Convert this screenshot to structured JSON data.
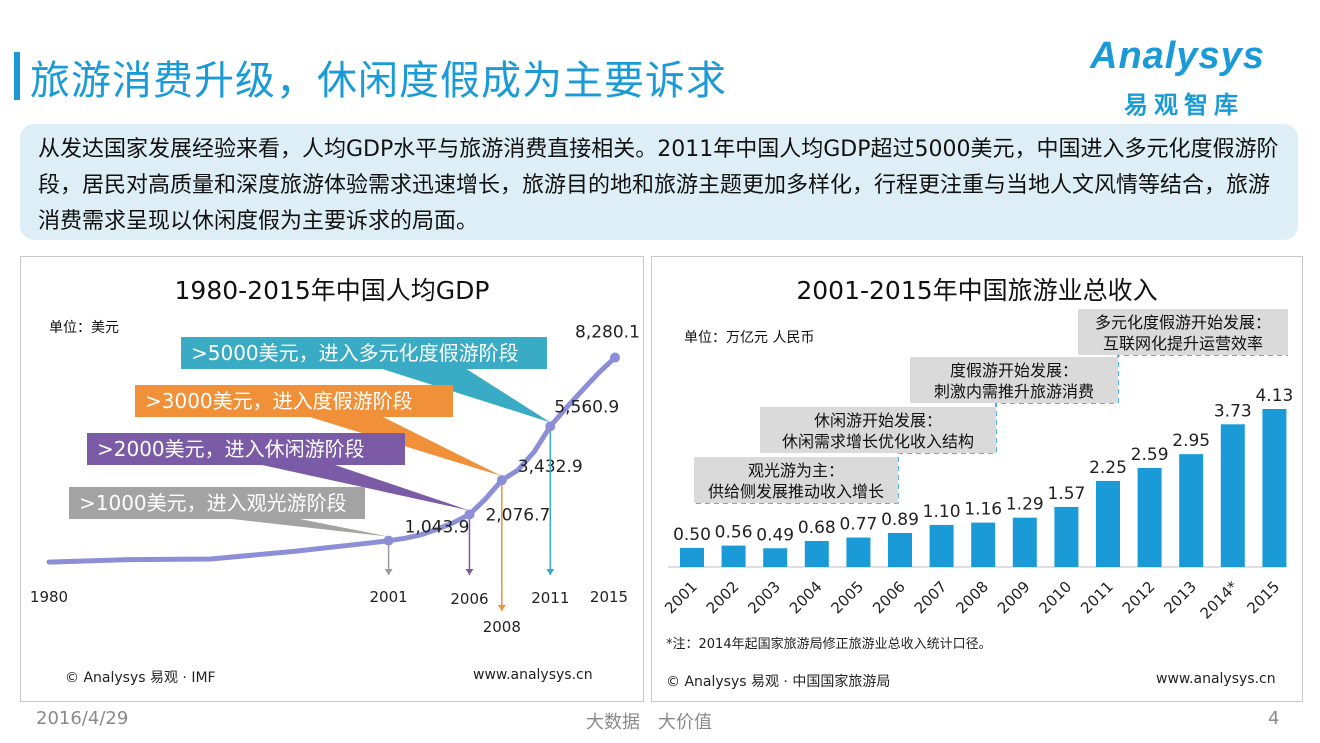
{
  "header": {
    "title": "旅游消费升级，休闲度假成为主要诉求",
    "logo_word": "Analysys",
    "logo_cn": "易观智库"
  },
  "intro": {
    "text": "从发达国家发展经验来看，人均GDP水平与旅游消费直接相关。2011年中国人均GDP超过5000美元，中国进入多元化度假游阶段，居民对高质量和深度旅游体验需求迅速增长，旅游目的地和旅游主题更加多样化，行程更注重与当地人文风情等结合，旅游消费需求呈现以休闲度假为主要诉求的局面。"
  },
  "left_panel": {
    "unit": "单位：美元",
    "source_left": "© Analysys 易观 · IMF",
    "source_right": "www.analysys.cn"
  },
  "right_panel": {
    "unit": "单位：万亿元 人民币",
    "note": "*注：2014年起国家旅游局修正旅游业总收入统计口径。",
    "source_left": "© Analysys 易观 · 中国国家旅游局",
    "source_right": "www.analysys.cn"
  },
  "chart_data": [
    {
      "type": "line",
      "title": "1980-2015年中国人均GDP",
      "ylabel": "单位：美元",
      "x": [
        1980,
        2001,
        2006,
        2008,
        2011,
        2015
      ],
      "labeled_points": [
        {
          "x": 2001,
          "label": "1,043.9",
          "value": 1043.9
        },
        {
          "x": 2006,
          "label": "2,076.7",
          "value": 2076.7
        },
        {
          "x": 2008,
          "label": "3,432.9",
          "value": 3432.9
        },
        {
          "x": 2011,
          "label": "5,560.9",
          "value": 5560.9
        },
        {
          "x": 2015,
          "label": "8,280.1",
          "value": 8280.1
        }
      ],
      "series_estimate": [
        {
          "x": 1980,
          "y": 195
        },
        {
          "x": 1985,
          "y": 294
        },
        {
          "x": 1990,
          "y": 318
        },
        {
          "x": 1995,
          "y": 610
        },
        {
          "x": 2000,
          "y": 959
        },
        {
          "x": 2001,
          "y": 1043.9
        },
        {
          "x": 2002,
          "y": 1135
        },
        {
          "x": 2003,
          "y": 1274
        },
        {
          "x": 2004,
          "y": 1490
        },
        {
          "x": 2005,
          "y": 1753
        },
        {
          "x": 2006,
          "y": 2076.7
        },
        {
          "x": 2007,
          "y": 2695
        },
        {
          "x": 2008,
          "y": 3432.9
        },
        {
          "x": 2009,
          "y": 3833
        },
        {
          "x": 2010,
          "y": 4550
        },
        {
          "x": 2011,
          "y": 5560.9
        },
        {
          "x": 2012,
          "y": 6300
        },
        {
          "x": 2013,
          "y": 7000
        },
        {
          "x": 2014,
          "y": 7680
        },
        {
          "x": 2015,
          "y": 8280.1
        }
      ],
      "xlim": [
        1980,
        2015
      ],
      "ylim": [
        0,
        8500
      ],
      "tick_labels": [
        "1980",
        "2001",
        "2006",
        "2008",
        "2011",
        "2015"
      ],
      "color": "#8c8fd6",
      "callouts": [
        {
          "text": ">5000美元，进入多元化度假游阶段",
          "target_year": 2011,
          "color": "#3aabc4"
        },
        {
          "text": ">3000美元，进入度假游阶段",
          "target_year": 2008,
          "color": "#f0913a"
        },
        {
          "text": ">2000美元，进入休闲游阶段",
          "target_year": 2006,
          "color": "#7b5aa6"
        },
        {
          "text": ">1000美元，进入观光游阶段",
          "target_year": 2001,
          "color": "#a3a3a3"
        }
      ]
    },
    {
      "type": "bar",
      "title": "2001-2015年中国旅游业总收入",
      "ylabel": "单位：万亿元 人民币",
      "categories": [
        "2001",
        "2002",
        "2003",
        "2004",
        "2005",
        "2006",
        "2007",
        "2008",
        "2009",
        "2010",
        "2011",
        "2012",
        "2013",
        "2014*",
        "2015"
      ],
      "values": [
        0.5,
        0.56,
        0.49,
        0.68,
        0.77,
        0.89,
        1.1,
        1.16,
        1.29,
        1.57,
        2.25,
        2.59,
        2.95,
        3.73,
        4.13
      ],
      "value_labels": [
        "0.50",
        "0.56",
        "0.49",
        "0.68",
        "0.77",
        "0.89",
        "1.10",
        "1.16",
        "1.29",
        "1.57",
        "2.25",
        "2.59",
        "2.95",
        "3.73",
        "4.13"
      ],
      "ylim": [
        0,
        4.5
      ],
      "color": "#1a9bd7",
      "stages": [
        {
          "line1": "观光游为主：",
          "line2": "供给侧发展推动收入增长"
        },
        {
          "line1": "休闲游开始发展：",
          "line2": "休闲需求增长优化收入结构"
        },
        {
          "line1": "度假游开始发展：",
          "line2": "刺激内需推升旅游消费"
        },
        {
          "line1": "多元化度假游开始发展：",
          "line2": "互联网化提升运营效率"
        }
      ]
    }
  ],
  "footer": {
    "date": "2016/4/29",
    "middle": "大数据　大价值",
    "page": "4"
  }
}
